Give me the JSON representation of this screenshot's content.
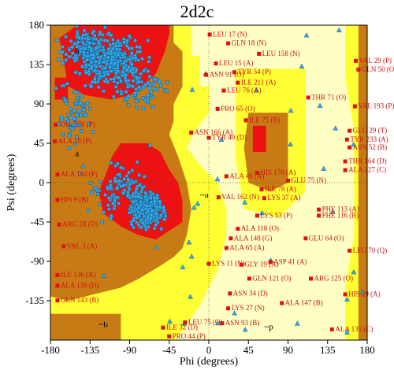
{
  "chart_data": {
    "type": "scatter",
    "title": "2d2c",
    "xlabel": "Phi (degrees)",
    "ylabel": "Psi (degrees)",
    "xlim": [
      -180,
      180
    ],
    "ylim": [
      -180,
      180
    ],
    "xticks": [
      -180,
      -135,
      -90,
      -45,
      0,
      45,
      90,
      135,
      180
    ],
    "yticks": [
      -135,
      -90,
      -45,
      0,
      45,
      90,
      135,
      180
    ],
    "grid": false,
    "colors": {
      "core": "#ee1111",
      "allowed": "#c87b14",
      "generous": "#ffff33",
      "disallowed": "#ffffc4",
      "residue": "#33aaee",
      "glycine": "#33aaee",
      "outlier_mark": "#dd1111",
      "outlier_label": "#cc1111"
    },
    "region_labels": [
      {
        "text": "b",
        "x": -152,
        "y": 147
      },
      {
        "text": "a",
        "x": -152,
        "y": 30
      },
      {
        "text": "~b",
        "x": -125,
        "y": -165
      },
      {
        "text": "~a",
        "x": -10,
        "y": -17
      },
      {
        "text": "~p",
        "x": 63,
        "y": -168
      }
    ],
    "outlier_labels": [
      {
        "text": "LEU 17 (N)",
        "x": 1,
        "y": 167
      },
      {
        "text": "GLN 18 (N)",
        "x": 22,
        "y": 157
      },
      {
        "text": "LEU 158 (N)",
        "x": 57,
        "y": 145
      },
      {
        "text": "LEU 15 (A)",
        "x": 8,
        "y": 134
      },
      {
        "text": "TYR 54 (P)",
        "x": 29,
        "y": 124
      },
      {
        "text": "ASN 91 (O)",
        "x": -3,
        "y": 121
      },
      {
        "text": "ILE 211 (A)",
        "x": 33,
        "y": 112
      },
      {
        "text": "LEU 76 (A)",
        "x": 17,
        "y": 103
      },
      {
        "text": "PRO 65 (O)",
        "x": 10,
        "y": 82
      },
      {
        "text": "THR 71 (O)",
        "x": 113,
        "y": 95
      },
      {
        "text": "VAL 193 (P)",
        "x": 166,
        "y": 85
      },
      {
        "text": "ILE 75 (B)",
        "x": 42,
        "y": 69
      },
      {
        "text": "VAL 278 (P)",
        "x": -174,
        "y": 64
      },
      {
        "text": "ASN 166 (A)",
        "x": -20,
        "y": 55
      },
      {
        "text": "TYR 40 (D)",
        "x": 0,
        "y": 49
      },
      {
        "text": "GLU 29 (T)",
        "x": 160,
        "y": 57
      },
      {
        "text": "TYR 233 (A)",
        "x": 157,
        "y": 47
      },
      {
        "text": "ASN 52 (B)",
        "x": 160,
        "y": 38
      },
      {
        "text": "ALA 29 (P)",
        "x": -175,
        "y": 45
      },
      {
        "text": "THR 164 (D)",
        "x": 155,
        "y": 22
      },
      {
        "text": "ALA 227 (C)",
        "x": 155,
        "y": 12
      },
      {
        "text": "HIS 178 (A)",
        "x": 55,
        "y": 9
      },
      {
        "text": "ALA 184 (P)",
        "x": -172,
        "y": 7
      },
      {
        "text": "ALA 46 (A)",
        "x": 20,
        "y": 5
      },
      {
        "text": "ILE 78 (A)",
        "x": 60,
        "y": -10
      },
      {
        "text": "GLU 75 (N)",
        "x": 90,
        "y": 0
      },
      {
        "text": "VAL 162 (N)",
        "x": 11,
        "y": -19
      },
      {
        "text": "LYS 37 (A)",
        "x": 63,
        "y": -20
      },
      {
        "text": "HIS 9 (B)",
        "x": -172,
        "y": -22
      },
      {
        "text": "PHE 113 (A)",
        "x": 125,
        "y": -33
      },
      {
        "text": "PHE 116 (B)",
        "x": 125,
        "y": -40
      },
      {
        "text": "LYS 53 (P)",
        "x": 55,
        "y": -40
      },
      {
        "text": "ARG 28 (D)",
        "x": -170,
        "y": -50
      },
      {
        "text": "ALA 118 (O)",
        "x": 33,
        "y": -55
      },
      {
        "text": "ALA 148 (G)",
        "x": 25,
        "y": -66
      },
      {
        "text": "GLU 64 (O)",
        "x": 110,
        "y": -66
      },
      {
        "text": "ALA 65 (A)",
        "x": 20,
        "y": -77
      },
      {
        "text": "VAL 3 (A)",
        "x": -165,
        "y": -75
      },
      {
        "text": "LEU 70 (Q)",
        "x": 160,
        "y": -80
      },
      {
        "text": "LYS 11 (N)",
        "x": 0,
        "y": -95
      },
      {
        "text": "GLY 19 (A)",
        "x": 37,
        "y": -96
      },
      {
        "text": "ASP 41 (A)",
        "x": 70,
        "y": -93
      },
      {
        "text": "GLN 121 (O)",
        "x": 46,
        "y": -112
      },
      {
        "text": "ARG 125 (O)",
        "x": 116,
        "y": -112
      },
      {
        "text": "HIS 29 (A)",
        "x": 155,
        "y": -130
      },
      {
        "text": "ASN 34 (D)",
        "x": 24,
        "y": -129
      },
      {
        "text": "ALA 147 (B)",
        "x": 83,
        "y": -140
      },
      {
        "text": "ILE 136 (A)",
        "x": -172,
        "y": -108
      },
      {
        "text": "ALA 138 (D)",
        "x": -172,
        "y": -120
      },
      {
        "text": "GLN 143 (B)",
        "x": -172,
        "y": -137
      },
      {
        "text": "LYS 27 (N)",
        "x": 22,
        "y": -146
      },
      {
        "text": "LEU 75 (O)",
        "x": -27,
        "y": -162
      },
      {
        "text": "ASN 93 (B)",
        "x": 15,
        "y": -163
      },
      {
        "text": "ILE 32 (D)",
        "x": -52,
        "y": -168
      },
      {
        "text": "PRO 44 (P)",
        "x": -45,
        "y": -178
      },
      {
        "text": "ALA 135 (C)",
        "x": 140,
        "y": -170
      },
      {
        "text": "GLN 50 (O)",
        "x": 170,
        "y": 127
      },
      {
        "text": "VAL 29 (P)",
        "x": 167,
        "y": 137
      }
    ]
  }
}
